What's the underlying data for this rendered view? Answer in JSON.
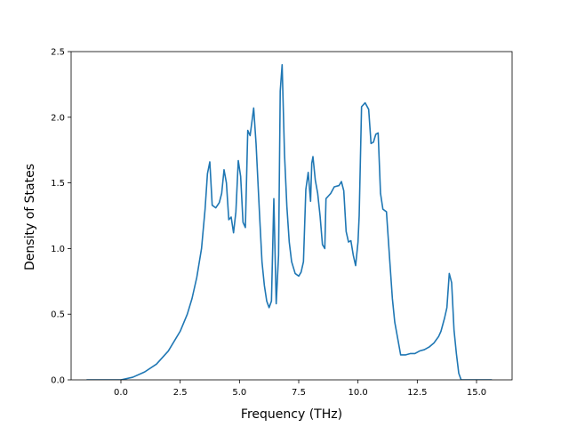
{
  "chart_data": {
    "type": "line",
    "title": "",
    "xlabel": "Frequency (THz)",
    "ylabel": "Density of States",
    "xlim": [
      -2.1,
      16.5
    ],
    "ylim": [
      0.0,
      2.5
    ],
    "xticks": [
      0.0,
      2.5,
      5.0,
      7.5,
      10.0,
      12.5,
      15.0
    ],
    "xtick_labels": [
      "0.0",
      "2.5",
      "5.0",
      "7.5",
      "10.0",
      "12.5",
      "15.0"
    ],
    "yticks": [
      0.0,
      0.5,
      1.0,
      1.5,
      2.0,
      2.5
    ],
    "ytick_labels": [
      "0.0",
      "0.5",
      "1.0",
      "1.5",
      "2.0",
      "2.5"
    ],
    "grid": false,
    "series": [
      {
        "color": "#1f77b4",
        "x": [
          -1.45,
          -0.5,
          0.0,
          0.5,
          1.0,
          1.5,
          2.0,
          2.5,
          2.8,
          3.0,
          3.2,
          3.4,
          3.55,
          3.65,
          3.75,
          3.85,
          4.0,
          4.15,
          4.25,
          4.35,
          4.45,
          4.55,
          4.65,
          4.75,
          4.85,
          4.95,
          5.05,
          5.15,
          5.25,
          5.35,
          5.45,
          5.6,
          5.7,
          5.85,
          5.95,
          6.05,
          6.15,
          6.25,
          6.35,
          6.45,
          6.55,
          6.65,
          6.72,
          6.8,
          6.9,
          7.0,
          7.1,
          7.2,
          7.35,
          7.5,
          7.6,
          7.7,
          7.8,
          7.9,
          8.0,
          8.05,
          8.1,
          8.2,
          8.3,
          8.4,
          8.5,
          8.6,
          8.65,
          8.75,
          8.85,
          9.0,
          9.2,
          9.3,
          9.4,
          9.5,
          9.6,
          9.7,
          9.8,
          9.9,
          10.0,
          10.05,
          10.15,
          10.3,
          10.45,
          10.55,
          10.65,
          10.75,
          10.85,
          10.95,
          11.05,
          11.2,
          11.35,
          11.45,
          11.55,
          11.8,
          12.0,
          12.2,
          12.4,
          12.6,
          12.8,
          13.0,
          13.2,
          13.4,
          13.5,
          13.65,
          13.75,
          13.85,
          13.95,
          14.05,
          14.15,
          14.25,
          14.35,
          14.6,
          15.0,
          15.65
        ],
        "y": [
          0.0,
          0.0,
          0.0,
          0.02,
          0.06,
          0.12,
          0.22,
          0.37,
          0.5,
          0.62,
          0.78,
          1.0,
          1.3,
          1.57,
          1.66,
          1.33,
          1.31,
          1.35,
          1.42,
          1.6,
          1.5,
          1.22,
          1.24,
          1.12,
          1.28,
          1.67,
          1.55,
          1.2,
          1.16,
          1.9,
          1.86,
          2.07,
          1.8,
          1.25,
          0.9,
          0.72,
          0.6,
          0.55,
          0.6,
          1.38,
          0.58,
          0.95,
          2.2,
          2.4,
          1.72,
          1.32,
          1.05,
          0.9,
          0.81,
          0.79,
          0.82,
          0.9,
          1.45,
          1.58,
          1.36,
          1.65,
          1.7,
          1.52,
          1.42,
          1.25,
          1.03,
          1.0,
          1.38,
          1.4,
          1.42,
          1.47,
          1.48,
          1.51,
          1.44,
          1.13,
          1.05,
          1.06,
          0.95,
          0.87,
          1.05,
          1.25,
          2.08,
          2.11,
          2.06,
          1.8,
          1.81,
          1.87,
          1.88,
          1.42,
          1.3,
          1.28,
          0.88,
          0.62,
          0.44,
          0.19,
          0.19,
          0.2,
          0.2,
          0.22,
          0.23,
          0.25,
          0.28,
          0.33,
          0.37,
          0.47,
          0.55,
          0.81,
          0.74,
          0.38,
          0.2,
          0.05,
          0.0,
          0.0,
          0.0,
          0.0
        ]
      }
    ]
  }
}
